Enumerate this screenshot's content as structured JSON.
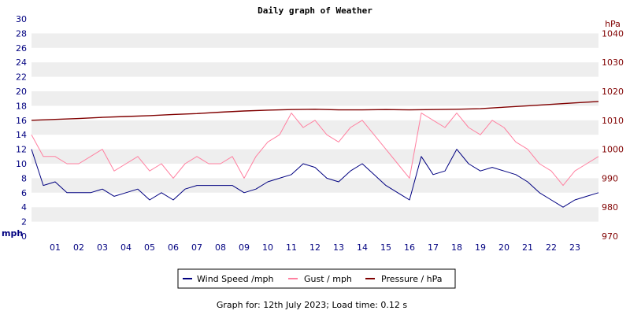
{
  "title": "Daily graph of Weather",
  "footer": "Graph for: 12th July 2023; Load time: 0.12 s",
  "colors": {
    "wind": "#000080",
    "gust": "#ff80a0",
    "pressure": "#800000",
    "band": "#eeeeee"
  },
  "chart_data": {
    "type": "line",
    "title": "Daily graph of Weather",
    "x_ticks": [
      "01",
      "02",
      "03",
      "04",
      "05",
      "06",
      "07",
      "08",
      "09",
      "10",
      "11",
      "12",
      "13",
      "14",
      "15",
      "16",
      "17",
      "18",
      "19",
      "20",
      "21",
      "22",
      "23"
    ],
    "xlim": [
      0,
      24
    ],
    "y_left": {
      "unit": "mph",
      "min": 0,
      "max": 30,
      "ticks": [
        0,
        2,
        4,
        6,
        8,
        10,
        12,
        14,
        16,
        18,
        20,
        22,
        24,
        26,
        28,
        30
      ]
    },
    "y_right": {
      "unit": "hPa",
      "min": 970,
      "max": 1045,
      "ticks": [
        970,
        980,
        990,
        1000,
        1010,
        1020,
        1030,
        1040
      ]
    },
    "grid": "alternating horizontal bands",
    "legend_position": "bottom-center",
    "series": [
      {
        "name": "Wind Speed /mph",
        "axis": "left",
        "x": [
          0,
          0.5,
          1,
          1.5,
          2,
          2.5,
          3,
          3.5,
          4,
          4.5,
          5,
          5.5,
          6,
          6.5,
          7,
          7.5,
          8,
          8.5,
          9,
          9.5,
          10,
          10.5,
          11,
          11.5,
          12,
          12.5,
          13,
          13.5,
          14,
          14.5,
          15,
          15.5,
          16,
          16.5,
          17,
          17.5,
          18,
          18.5,
          19,
          19.5,
          20,
          20.5,
          21,
          21.5,
          22,
          22.5,
          23,
          23.5,
          24
        ],
        "y": [
          12,
          7,
          7.5,
          6,
          6,
          6,
          6.5,
          5.5,
          6,
          6.5,
          5,
          6,
          5,
          6.5,
          7,
          7,
          7,
          7,
          6,
          6.5,
          7.5,
          8,
          8.5,
          10,
          9.5,
          8,
          7.5,
          9,
          10,
          8.5,
          7,
          6,
          5,
          11,
          8.5,
          9,
          12,
          10,
          9,
          9.5,
          9,
          8.5,
          7.5,
          6,
          5,
          4,
          5,
          5.5,
          6
        ]
      },
      {
        "name": "Gust / mph",
        "axis": "left",
        "x": [
          0,
          0.5,
          1,
          1.5,
          2,
          2.5,
          3,
          3.5,
          4,
          4.5,
          5,
          5.5,
          6,
          6.5,
          7,
          7.5,
          8,
          8.5,
          9,
          9.5,
          10,
          10.5,
          11,
          11.5,
          12,
          12.5,
          13,
          13.5,
          14,
          14.5,
          15,
          15.5,
          16,
          16.5,
          17,
          17.5,
          18,
          18.5,
          19,
          19.5,
          20,
          20.5,
          21,
          21.5,
          22,
          22.5,
          23,
          23.5,
          24
        ],
        "y": [
          14,
          11,
          11,
          10,
          10,
          11,
          12,
          9,
          10,
          11,
          9,
          10,
          8,
          10,
          11,
          10,
          10,
          11,
          8,
          11,
          13,
          14,
          17,
          15,
          16,
          14,
          13,
          15,
          16,
          14,
          12,
          10,
          8,
          17,
          16,
          15,
          17,
          15,
          14,
          16,
          15,
          13,
          12,
          10,
          9,
          7,
          9,
          10,
          11
        ]
      },
      {
        "name": "Pressure / hPa",
        "axis": "right",
        "x": [
          0,
          1,
          2,
          3,
          4,
          5,
          6,
          7,
          8,
          9,
          10,
          11,
          12,
          13,
          14,
          15,
          16,
          17,
          18,
          19,
          20,
          21,
          22,
          23,
          24
        ],
        "y": [
          1010,
          1010.3,
          1010.6,
          1011,
          1011.3,
          1011.6,
          1012,
          1012.3,
          1012.8,
          1013.2,
          1013.5,
          1013.7,
          1013.8,
          1013.6,
          1013.6,
          1013.7,
          1013.6,
          1013.7,
          1013.8,
          1014,
          1014.5,
          1015,
          1015.5,
          1016,
          1016.5
        ]
      }
    ]
  }
}
